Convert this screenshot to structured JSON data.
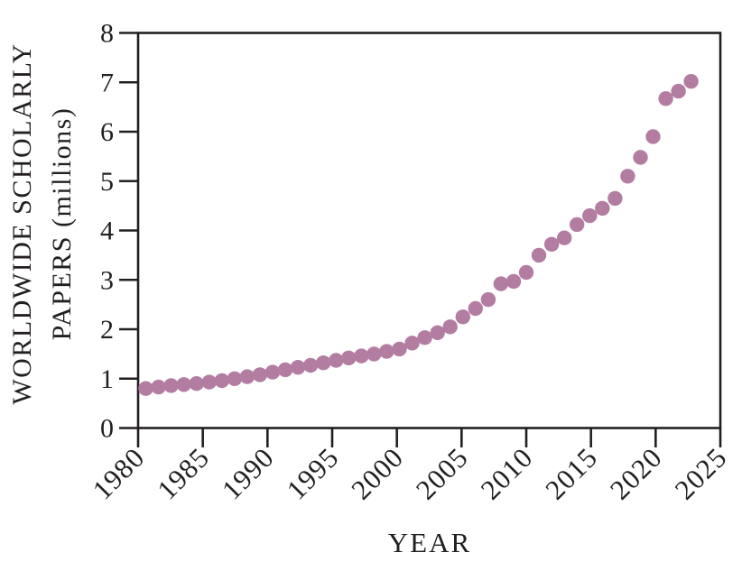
{
  "figure": {
    "background_color": "#ffffff",
    "axis_color": "#231f20",
    "dot_color": "#b37da2"
  },
  "chart_data": {
    "type": "scatter",
    "title": "",
    "xlabel": "YEAR",
    "ylabel": "WORLDWIDE SCHOLARLY PAPERS (millions)",
    "ylabel_line1": "WORLDWIDE SCHOLARLY",
    "ylabel_line2": "PAPERS (millions)",
    "xlim": [
      1980,
      2025
    ],
    "ylim": [
      0,
      8
    ],
    "x_ticks": [
      1980,
      1985,
      1990,
      1995,
      2000,
      2005,
      2010,
      2015,
      2020,
      2025
    ],
    "y_ticks": [
      0,
      1,
      2,
      3,
      4,
      5,
      6,
      7,
      8
    ],
    "grid": false,
    "legend": "none",
    "marker": "circle",
    "series": [
      {
        "name": "worldwide scholarly papers (millions)",
        "x": [
          1980,
          1981,
          1982,
          1983,
          1984,
          1985,
          1986,
          1987,
          1988,
          1989,
          1990,
          1991,
          1992,
          1993,
          1994,
          1995,
          1996,
          1997,
          1998,
          1999,
          2000,
          2001,
          2002,
          2003,
          2004,
          2005,
          2006,
          2007,
          2008,
          2009,
          2010,
          2011,
          2012,
          2013,
          2014,
          2015,
          2016,
          2017,
          2018,
          2019,
          2020,
          2021,
          2022,
          2023
        ],
        "y": [
          0.8,
          0.83,
          0.86,
          0.88,
          0.9,
          0.93,
          0.96,
          1.0,
          1.04,
          1.08,
          1.13,
          1.18,
          1.23,
          1.27,
          1.32,
          1.37,
          1.42,
          1.46,
          1.5,
          1.55,
          1.6,
          1.72,
          1.83,
          1.93,
          2.05,
          2.25,
          2.42,
          2.6,
          2.92,
          2.97,
          3.15,
          3.5,
          3.72,
          3.85,
          4.12,
          4.3,
          4.45,
          4.65,
          5.1,
          5.48,
          5.9,
          6.67,
          6.82,
          7.02
        ]
      }
    ]
  }
}
